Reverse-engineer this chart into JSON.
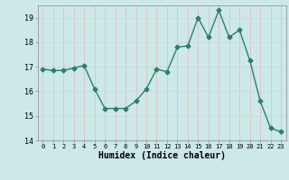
{
  "x": [
    0,
    1,
    2,
    3,
    4,
    5,
    6,
    7,
    8,
    9,
    10,
    11,
    12,
    13,
    14,
    15,
    16,
    17,
    18,
    19,
    20,
    21,
    22,
    23
  ],
  "y": [
    16.9,
    16.85,
    16.85,
    16.95,
    17.05,
    16.1,
    15.3,
    15.3,
    15.3,
    15.6,
    16.1,
    16.9,
    16.8,
    17.8,
    17.85,
    19.0,
    18.2,
    19.3,
    18.2,
    18.5,
    17.25,
    15.6,
    14.5,
    14.35
  ],
  "xlim": [
    -0.5,
    23.5
  ],
  "ylim": [
    14,
    19.5
  ],
  "yticks": [
    14,
    15,
    16,
    17,
    18,
    19
  ],
  "xticks": [
    0,
    1,
    2,
    3,
    4,
    5,
    6,
    7,
    8,
    9,
    10,
    11,
    12,
    13,
    14,
    15,
    16,
    17,
    18,
    19,
    20,
    21,
    22,
    23
  ],
  "xlabel": "Humidex (Indice chaleur)",
  "line_color": "#2e7d6e",
  "bg_color": "#cce8e8",
  "grid_color_h": "#c8d8d0",
  "grid_color_v": "#e8b8b8",
  "marker": "D",
  "marker_size": 2.5,
  "linewidth": 1.0
}
